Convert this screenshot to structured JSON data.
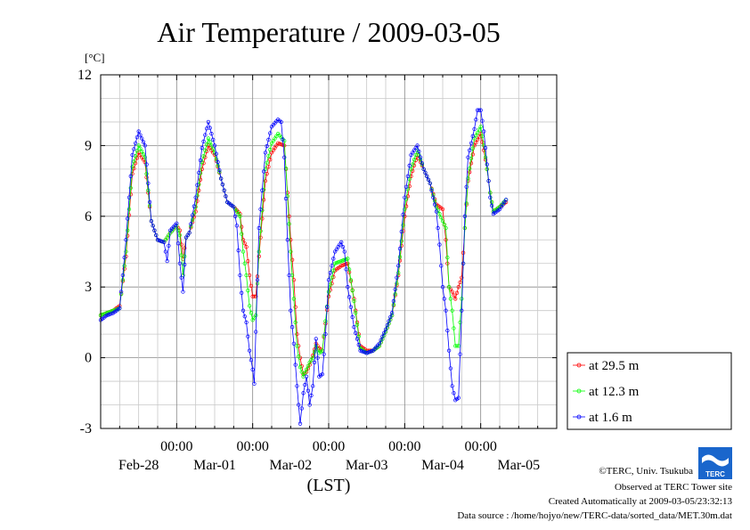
{
  "chart_data": {
    "type": "line",
    "title": "Air Temperature / 2009-03-05",
    "ylabel": "[°C]",
    "xlabel": "(LST)",
    "ylim": [
      -3,
      12
    ],
    "yticks": [
      "12",
      "9",
      "6",
      "3",
      "0",
      "-3"
    ],
    "xlim_hours": [
      0,
      144
    ],
    "xtick_time_label": "00:00",
    "day_labels": [
      "Feb-28",
      "Mar-01",
      "Mar-02",
      "Mar-03",
      "Mar-04",
      "Mar-05"
    ],
    "grid": true,
    "legend_position": "bottom-right",
    "colors": {
      "at_29_5": "#ff0000",
      "at_12_3": "#00ff00",
      "at_1_6": "#0000ff"
    },
    "series": [
      {
        "name": "at 29.5 m",
        "color": "#ff0000",
        "points": [
          [
            0.0,
            1.8
          ],
          [
            2.0,
            1.9
          ],
          [
            4.0,
            2.0
          ],
          [
            6.0,
            2.2
          ],
          [
            8.0,
            4.3
          ],
          [
            10.0,
            7.8
          ],
          [
            12.0,
            8.7
          ],
          [
            14.0,
            8.3
          ],
          [
            15.0,
            7.0
          ],
          [
            16.0,
            5.8
          ],
          [
            18.0,
            5.0
          ],
          [
            20.0,
            4.9
          ],
          [
            22.0,
            5.3
          ],
          [
            24.0,
            5.6
          ],
          [
            25.0,
            5.4
          ],
          [
            26.0,
            4.2
          ],
          [
            27.0,
            5.1
          ],
          [
            28.0,
            5.3
          ],
          [
            30.0,
            6.2
          ],
          [
            32.0,
            8.0
          ],
          [
            34.0,
            9.0
          ],
          [
            36.0,
            8.6
          ],
          [
            38.0,
            7.6
          ],
          [
            40.0,
            6.6
          ],
          [
            42.0,
            6.4
          ],
          [
            44.0,
            6.1
          ],
          [
            45.0,
            5.0
          ],
          [
            46.0,
            4.7
          ],
          [
            47.0,
            3.5
          ],
          [
            48.0,
            2.6
          ],
          [
            49.0,
            2.6
          ],
          [
            50.0,
            4.3
          ],
          [
            52.0,
            7.5
          ],
          [
            54.0,
            8.7
          ],
          [
            56.0,
            9.1
          ],
          [
            58.0,
            9.0
          ],
          [
            60.0,
            5.0
          ],
          [
            61.0,
            3.3
          ],
          [
            62.0,
            1.0
          ],
          [
            63.0,
            0.0
          ],
          [
            64.0,
            -0.7
          ],
          [
            65.0,
            -0.6
          ],
          [
            66.0,
            -0.3
          ],
          [
            67.0,
            0.1
          ],
          [
            68.0,
            0.6
          ],
          [
            69.0,
            0.4
          ],
          [
            70.0,
            0.3
          ],
          [
            72.0,
            2.6
          ],
          [
            74.0,
            3.7
          ],
          [
            76.0,
            3.9
          ],
          [
            78.0,
            4.0
          ],
          [
            80.0,
            2.5
          ],
          [
            82.0,
            0.5
          ],
          [
            84.0,
            0.3
          ],
          [
            86.0,
            0.3
          ],
          [
            88.0,
            0.5
          ],
          [
            90.0,
            1.1
          ],
          [
            92.0,
            1.8
          ],
          [
            94.0,
            3.5
          ],
          [
            96.0,
            6.0
          ],
          [
            98.0,
            7.7
          ],
          [
            100.0,
            8.6
          ],
          [
            102.0,
            8.0
          ],
          [
            104.0,
            7.4
          ],
          [
            106.0,
            6.5
          ],
          [
            108.0,
            6.3
          ],
          [
            109.0,
            5.0
          ],
          [
            110.0,
            3.0
          ],
          [
            111.0,
            2.8
          ],
          [
            112.0,
            2.5
          ],
          [
            113.0,
            3.0
          ],
          [
            114.0,
            3.4
          ],
          [
            115.0,
            5.5
          ],
          [
            116.0,
            7.5
          ],
          [
            118.0,
            9.0
          ],
          [
            120.0,
            9.5
          ],
          [
            121.0,
            8.8
          ],
          [
            122.0,
            8.0
          ],
          [
            123.0,
            7.0
          ],
          [
            124.0,
            6.2
          ],
          [
            126.0,
            6.4
          ],
          [
            128.0,
            6.6
          ]
        ]
      },
      {
        "name": "at 12.3 m",
        "color": "#00ff00",
        "points": [
          [
            0.0,
            1.8
          ],
          [
            2.0,
            1.9
          ],
          [
            4.0,
            2.0
          ],
          [
            6.0,
            2.1
          ],
          [
            8.0,
            4.5
          ],
          [
            10.0,
            8.1
          ],
          [
            12.0,
            9.0
          ],
          [
            14.0,
            8.5
          ],
          [
            15.0,
            7.1
          ],
          [
            16.0,
            5.8
          ],
          [
            18.0,
            5.0
          ],
          [
            20.0,
            4.9
          ],
          [
            22.0,
            5.3
          ],
          [
            24.0,
            5.6
          ],
          [
            25.0,
            5.2
          ],
          [
            26.0,
            3.5
          ],
          [
            27.0,
            5.1
          ],
          [
            28.0,
            5.3
          ],
          [
            30.0,
            6.4
          ],
          [
            32.0,
            8.3
          ],
          [
            34.0,
            9.3
          ],
          [
            36.0,
            8.7
          ],
          [
            38.0,
            7.6
          ],
          [
            40.0,
            6.6
          ],
          [
            42.0,
            6.4
          ],
          [
            44.0,
            6.0
          ],
          [
            45.0,
            4.5
          ],
          [
            46.0,
            3.5
          ],
          [
            47.0,
            2.2
          ],
          [
            48.0,
            1.6
          ],
          [
            49.0,
            1.8
          ],
          [
            50.0,
            4.5
          ],
          [
            52.0,
            8.0
          ],
          [
            54.0,
            9.1
          ],
          [
            56.0,
            9.5
          ],
          [
            58.0,
            9.2
          ],
          [
            60.0,
            4.5
          ],
          [
            61.0,
            2.5
          ],
          [
            62.0,
            0.5
          ],
          [
            63.0,
            -0.4
          ],
          [
            64.0,
            -0.8
          ],
          [
            65.0,
            -0.5
          ],
          [
            66.0,
            -0.2
          ],
          [
            67.0,
            0.0
          ],
          [
            68.0,
            0.5
          ],
          [
            69.0,
            0.2
          ],
          [
            70.0,
            0.3
          ],
          [
            72.0,
            2.8
          ],
          [
            74.0,
            4.0
          ],
          [
            76.0,
            4.1
          ],
          [
            78.0,
            4.2
          ],
          [
            80.0,
            2.4
          ],
          [
            82.0,
            0.4
          ],
          [
            84.0,
            0.2
          ],
          [
            86.0,
            0.3
          ],
          [
            88.0,
            0.5
          ],
          [
            90.0,
            1.1
          ],
          [
            92.0,
            1.8
          ],
          [
            94.0,
            3.6
          ],
          [
            96.0,
            6.3
          ],
          [
            98.0,
            8.0
          ],
          [
            100.0,
            8.8
          ],
          [
            102.0,
            8.0
          ],
          [
            104.0,
            7.4
          ],
          [
            106.0,
            6.4
          ],
          [
            108.0,
            5.8
          ],
          [
            109.0,
            5.5
          ],
          [
            110.0,
            3.0
          ],
          [
            111.0,
            2.0
          ],
          [
            112.0,
            0.5
          ],
          [
            113.0,
            0.5
          ],
          [
            114.0,
            2.5
          ],
          [
            115.0,
            5.5
          ],
          [
            116.0,
            7.6
          ],
          [
            118.0,
            9.3
          ],
          [
            120.0,
            9.8
          ],
          [
            121.0,
            9.0
          ],
          [
            122.0,
            8.0
          ],
          [
            123.0,
            7.0
          ],
          [
            124.0,
            6.2
          ],
          [
            126.0,
            6.4
          ],
          [
            128.0,
            6.7
          ]
        ]
      },
      {
        "name": "at 1.6 m",
        "color": "#0000ff",
        "points": [
          [
            0.0,
            1.6
          ],
          [
            2.0,
            1.8
          ],
          [
            4.0,
            1.9
          ],
          [
            6.0,
            2.1
          ],
          [
            7.0,
            3.5
          ],
          [
            8.0,
            5.0
          ],
          [
            10.0,
            8.6
          ],
          [
            12.0,
            9.6
          ],
          [
            14.0,
            9.0
          ],
          [
            15.0,
            7.4
          ],
          [
            16.0,
            5.8
          ],
          [
            18.0,
            5.0
          ],
          [
            20.0,
            4.9
          ],
          [
            21.0,
            4.1
          ],
          [
            22.0,
            5.4
          ],
          [
            24.0,
            5.7
          ],
          [
            25.0,
            4.0
          ],
          [
            26.0,
            2.8
          ],
          [
            27.0,
            5.1
          ],
          [
            28.0,
            5.3
          ],
          [
            30.0,
            6.8
          ],
          [
            32.0,
            8.9
          ],
          [
            34.0,
            10.0
          ],
          [
            36.0,
            9.0
          ],
          [
            38.0,
            7.6
          ],
          [
            40.0,
            6.6
          ],
          [
            42.0,
            6.4
          ],
          [
            43.0,
            5.6
          ],
          [
            44.0,
            3.5
          ],
          [
            45.0,
            2.0
          ],
          [
            46.0,
            1.5
          ],
          [
            47.0,
            0.3
          ],
          [
            48.0,
            -0.5
          ],
          [
            48.5,
            -1.1
          ],
          [
            50.0,
            5.5
          ],
          [
            52.0,
            8.7
          ],
          [
            54.0,
            9.8
          ],
          [
            56.0,
            10.1
          ],
          [
            57.0,
            10.0
          ],
          [
            58.0,
            8.5
          ],
          [
            59.0,
            5.0
          ],
          [
            60.0,
            2.0
          ],
          [
            61.0,
            0.6
          ],
          [
            62.0,
            -1.2
          ],
          [
            63.0,
            -2.8
          ],
          [
            64.0,
            -1.5
          ],
          [
            65.0,
            -0.8
          ],
          [
            66.0,
            -2.0
          ],
          [
            67.0,
            -1.2
          ],
          [
            68.0,
            0.8
          ],
          [
            69.0,
            -0.8
          ],
          [
            70.0,
            -0.7
          ],
          [
            71.0,
            1.0
          ],
          [
            72.0,
            3.3
          ],
          [
            74.0,
            4.5
          ],
          [
            75.0,
            4.7
          ],
          [
            76.0,
            4.9
          ],
          [
            77.0,
            4.5
          ],
          [
            78.0,
            3.0
          ],
          [
            80.0,
            1.3
          ],
          [
            82.0,
            0.3
          ],
          [
            84.0,
            0.2
          ],
          [
            86.0,
            0.3
          ],
          [
            88.0,
            0.6
          ],
          [
            90.0,
            1.2
          ],
          [
            92.0,
            1.9
          ],
          [
            94.0,
            3.9
          ],
          [
            96.0,
            6.8
          ],
          [
            98.0,
            8.6
          ],
          [
            100.0,
            9.0
          ],
          [
            102.0,
            8.0
          ],
          [
            104.0,
            7.4
          ],
          [
            106.0,
            6.2
          ],
          [
            107.0,
            4.8
          ],
          [
            108.0,
            3.0
          ],
          [
            109.0,
            2.0
          ],
          [
            110.0,
            0.3
          ],
          [
            111.0,
            -1.2
          ],
          [
            112.0,
            -1.8
          ],
          [
            113.0,
            -1.7
          ],
          [
            114.0,
            2.0
          ],
          [
            115.0,
            6.0
          ],
          [
            116.0,
            8.5
          ],
          [
            118.0,
            9.7
          ],
          [
            119.0,
            10.5
          ],
          [
            120.0,
            10.5
          ],
          [
            121.0,
            9.6
          ],
          [
            122.0,
            8.2
          ],
          [
            123.0,
            6.8
          ],
          [
            124.0,
            6.1
          ],
          [
            126.0,
            6.3
          ],
          [
            128.0,
            6.7
          ]
        ]
      }
    ]
  },
  "footer": {
    "credit_org": "©TERC, Univ. Tsukuba",
    "observed": "Observed at TERC Tower site",
    "created": "Created Automatically at 2009-03-05/23:32:13",
    "source": "Data source : /home/hojyo/new/TERC-data/sorted_data/MET.30m.dat",
    "logo_text": "TERC"
  }
}
